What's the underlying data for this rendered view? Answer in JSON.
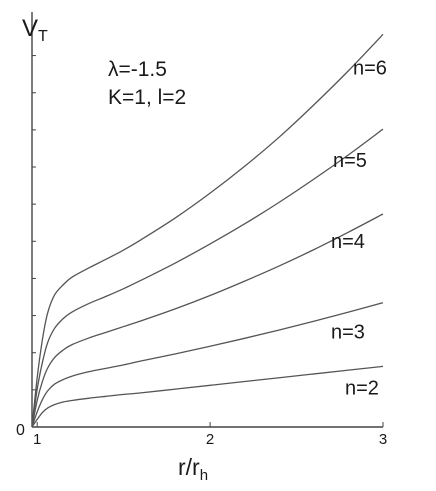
{
  "chart_data": {
    "type": "line",
    "xlabel_main": "r/r",
    "xlabel_sub": "h",
    "ylabel_main": "V",
    "ylabel_sub": "T",
    "annotations": {
      "lambda": "λ=-1.5",
      "params": "K=1, l=2"
    },
    "xlim": [
      0.97,
      3.0
    ],
    "ylim": [
      0,
      1
    ],
    "x_ticks": [
      {
        "value": 1,
        "label": "1"
      },
      {
        "value": 2,
        "label": "2"
      },
      {
        "value": 3,
        "label": "3"
      }
    ],
    "y_tick_zero_label": "0",
    "y_minor_ticks": [
      0.098,
      0.196,
      0.294,
      0.392,
      0.49,
      0.588,
      0.686,
      0.784,
      0.882,
      0.98
    ],
    "x": [
      0.97,
      1.0,
      1.03,
      1.06,
      1.1,
      1.15,
      1.2,
      1.3,
      1.4,
      1.5,
      1.6,
      1.8,
      2.0,
      2.2,
      2.4,
      2.6,
      2.8,
      3.0
    ],
    "series": [
      {
        "name": "n=2",
        "values": [
          0,
          0.02,
          0.038,
          0.05,
          0.059,
          0.066,
          0.07,
          0.076,
          0.081,
          0.086,
          0.09,
          0.1,
          0.11,
          0.12,
          0.13,
          0.14,
          0.15,
          0.16
        ]
      },
      {
        "name": "n=3",
        "values": [
          0,
          0.04,
          0.072,
          0.095,
          0.113,
          0.125,
          0.134,
          0.146,
          0.155,
          0.164,
          0.174,
          0.193,
          0.213,
          0.234,
          0.256,
          0.279,
          0.303,
          0.328
        ]
      },
      {
        "name": "n=4",
        "values": [
          0,
          0.07,
          0.12,
          0.155,
          0.183,
          0.203,
          0.217,
          0.235,
          0.25,
          0.265,
          0.28,
          0.312,
          0.347,
          0.385,
          0.425,
          0.468,
          0.514,
          0.562
        ]
      },
      {
        "name": "n=5",
        "values": [
          0,
          0.1,
          0.17,
          0.222,
          0.26,
          0.286,
          0.303,
          0.326,
          0.345,
          0.365,
          0.387,
          0.433,
          0.483,
          0.536,
          0.593,
          0.654,
          0.718,
          0.786
        ]
      },
      {
        "name": "n=6",
        "values": [
          0,
          0.13,
          0.23,
          0.3,
          0.348,
          0.375,
          0.395,
          0.42,
          0.443,
          0.467,
          0.494,
          0.552,
          0.617,
          0.688,
          0.765,
          0.85,
          0.94,
          1.036
        ]
      }
    ],
    "series_label_anchor_x": [
      2.9,
      2.9,
      2.9,
      2.9,
      2.9
    ]
  }
}
